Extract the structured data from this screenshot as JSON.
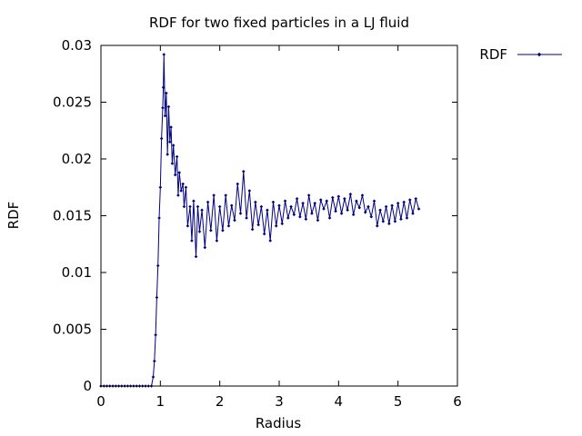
{
  "chart_data": {
    "type": "line",
    "title": "RDF for two fixed particles in a LJ fluid",
    "xlabel": "Radius",
    "ylabel": "RDF",
    "xlim": [
      0,
      6
    ],
    "ylim": [
      0,
      0.03
    ],
    "x_ticks": [
      0,
      1,
      2,
      3,
      4,
      5,
      6
    ],
    "x_tick_labels": [
      "0",
      "1",
      "2",
      "3",
      "4",
      "5",
      "6"
    ],
    "y_ticks": [
      0,
      0.005,
      0.01,
      0.015,
      0.02,
      0.025,
      0.03
    ],
    "y_tick_labels": [
      "0",
      "0.005",
      "0.01",
      "0.015",
      "0.02",
      "0.025",
      "0.03"
    ],
    "grid": false,
    "legend_position": "outside-top-right",
    "series": [
      {
        "name": "RDF",
        "color": "#000080",
        "marker": "diamond",
        "x": [
          0,
          0.05,
          0.1,
          0.15,
          0.2,
          0.25,
          0.3,
          0.35,
          0.4,
          0.45,
          0.5,
          0.55,
          0.6,
          0.65,
          0.7,
          0.75,
          0.8,
          0.85,
          0.88,
          0.9,
          0.92,
          0.94,
          0.96,
          0.98,
          1.0,
          1.02,
          1.04,
          1.05,
          1.06,
          1.08,
          1.1,
          1.12,
          1.14,
          1.16,
          1.18,
          1.2,
          1.22,
          1.25,
          1.28,
          1.3,
          1.32,
          1.35,
          1.38,
          1.4,
          1.43,
          1.46,
          1.5,
          1.53,
          1.56,
          1.6,
          1.63,
          1.66,
          1.7,
          1.75,
          1.8,
          1.85,
          1.9,
          1.95,
          2.0,
          2.05,
          2.1,
          2.15,
          2.2,
          2.25,
          2.3,
          2.35,
          2.4,
          2.45,
          2.5,
          2.55,
          2.6,
          2.65,
          2.7,
          2.75,
          2.8,
          2.85,
          2.9,
          2.95,
          3.0,
          3.05,
          3.1,
          3.15,
          3.2,
          3.25,
          3.3,
          3.35,
          3.4,
          3.45,
          3.5,
          3.55,
          3.6,
          3.65,
          3.7,
          3.75,
          3.8,
          3.85,
          3.9,
          3.95,
          4.0,
          4.05,
          4.1,
          4.15,
          4.2,
          4.25,
          4.3,
          4.35,
          4.4,
          4.45,
          4.5,
          4.55,
          4.6,
          4.65,
          4.7,
          4.75,
          4.8,
          4.85,
          4.9,
          4.95,
          5.0,
          5.05,
          5.1,
          5.15,
          5.2,
          5.25,
          5.3,
          5.35
        ],
        "values": [
          0,
          0,
          0,
          0,
          0,
          0,
          0,
          0,
          0,
          0,
          0,
          0,
          0,
          0,
          0,
          0,
          0,
          0,
          0.0008,
          0.0022,
          0.0045,
          0.0078,
          0.0106,
          0.0148,
          0.0175,
          0.0218,
          0.0245,
          0.0263,
          0.0292,
          0.0238,
          0.0258,
          0.0204,
          0.0246,
          0.0215,
          0.0228,
          0.0196,
          0.0212,
          0.0186,
          0.0202,
          0.0168,
          0.0188,
          0.0172,
          0.0178,
          0.0158,
          0.0175,
          0.0141,
          0.0158,
          0.0128,
          0.0163,
          0.0114,
          0.0158,
          0.0136,
          0.0155,
          0.0122,
          0.0162,
          0.0137,
          0.0168,
          0.0128,
          0.0158,
          0.0137,
          0.0168,
          0.0141,
          0.0159,
          0.0146,
          0.0178,
          0.0152,
          0.0189,
          0.0148,
          0.0172,
          0.0138,
          0.0162,
          0.0142,
          0.0158,
          0.0134,
          0.0155,
          0.0128,
          0.0162,
          0.0141,
          0.0159,
          0.0143,
          0.0163,
          0.0148,
          0.0158,
          0.0151,
          0.0165,
          0.0149,
          0.0161,
          0.0147,
          0.0168,
          0.0152,
          0.0161,
          0.0146,
          0.0164,
          0.0156,
          0.0163,
          0.0148,
          0.0166,
          0.0154,
          0.0167,
          0.0152,
          0.0165,
          0.0155,
          0.0169,
          0.0151,
          0.0163,
          0.0157,
          0.0168,
          0.0153,
          0.0158,
          0.0149,
          0.0163,
          0.0141,
          0.0155,
          0.0145,
          0.0158,
          0.0143,
          0.0159,
          0.0145,
          0.0161,
          0.0147,
          0.0162,
          0.0148,
          0.0164,
          0.0152,
          0.0165,
          0.0156
        ]
      }
    ]
  }
}
